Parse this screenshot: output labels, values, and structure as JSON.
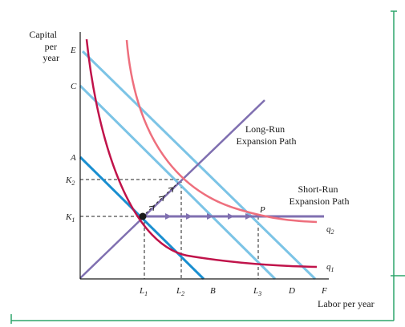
{
  "y_axis_label": [
    "Capital",
    "per",
    "year"
  ],
  "x_axis_label": "Labor per year",
  "point_labels": {
    "E": "E",
    "C": "C",
    "A": "A",
    "K2": "K",
    "K2_sub": "2",
    "K1": "K",
    "K1_sub": "1",
    "L1": "L",
    "L1_sub": "1",
    "L2": "L",
    "L2_sub": "2",
    "B": "B",
    "L3": "L",
    "L3_sub": "3",
    "D": "D",
    "F": "F",
    "P": "P"
  },
  "curve_labels": {
    "q2": "q",
    "q2_sub": "2",
    "q1": "q",
    "q1_sub": "1"
  },
  "long_run_path": [
    "Long-Run",
    "Expansion Path"
  ],
  "short_run_path": [
    "Short-Run",
    "Expansion Path"
  ],
  "colors": {
    "axis": "#1a1a1a",
    "isocost_dark": "#1a8fd0",
    "isocost_light": "#7cc4e6",
    "isoquant_q1": "#c0134a",
    "isoquant_q2": "#ee6f7d",
    "expansion_path": "#7f6fb0",
    "frame": "#2ea56b",
    "guides": "#222222"
  }
}
